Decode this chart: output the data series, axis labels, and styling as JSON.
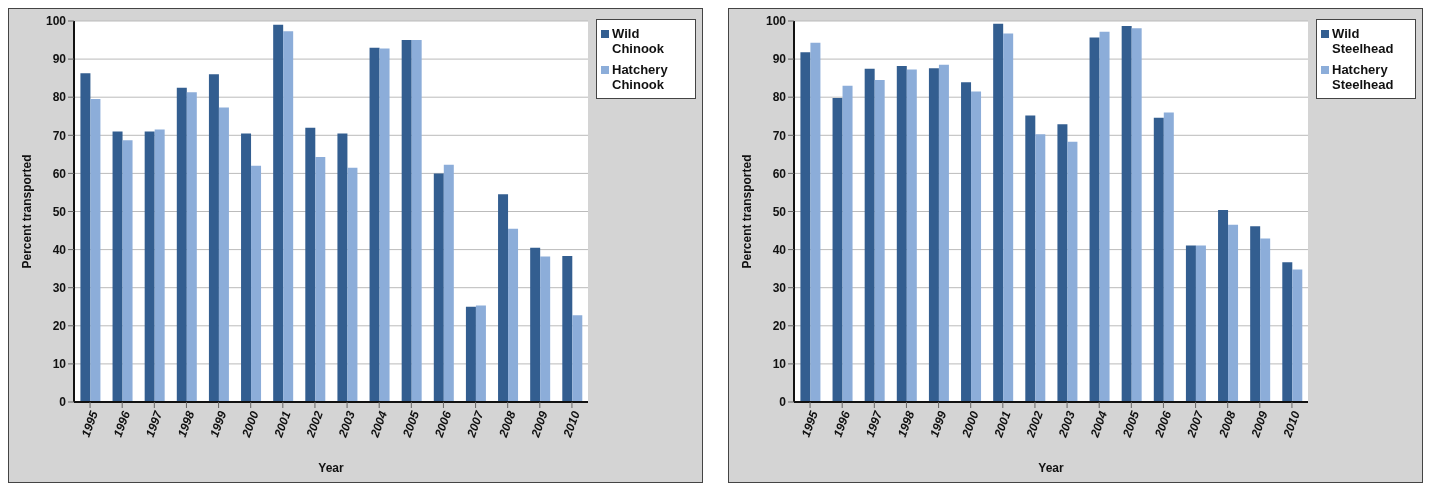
{
  "chart_data": [
    {
      "type": "bar",
      "xlabel": "Year",
      "ylabel": "Percent transported",
      "categories": [
        "1995",
        "1996",
        "1997",
        "1998",
        "1999",
        "2000",
        "2001",
        "2002",
        "2003",
        "2004",
        "2005",
        "2006",
        "2007",
        "2008",
        "2009",
        "2010"
      ],
      "ylim": [
        0,
        100
      ],
      "yticks": [
        0,
        10,
        20,
        30,
        40,
        50,
        60,
        70,
        80,
        90,
        100
      ],
      "grid": "y",
      "legend": "top right",
      "series": [
        {
          "name": "Wild Chinook",
          "color": "#335e90",
          "values": [
            86.3,
            71,
            71,
            82.5,
            86,
            70.5,
            99,
            72,
            70.5,
            93,
            95,
            60,
            25,
            54.5,
            40.5,
            38.3
          ]
        },
        {
          "name": "Hatchery Chinook",
          "color": "#8cadd9",
          "values": [
            79.5,
            68.7,
            71.5,
            81.3,
            77.3,
            62,
            97.3,
            64.3,
            61.5,
            92.8,
            95,
            62.3,
            25.3,
            45.5,
            38.2,
            22.8
          ]
        }
      ]
    },
    {
      "type": "bar",
      "xlabel": "Year",
      "ylabel": "Percent transported",
      "categories": [
        "1995",
        "1996",
        "1997",
        "1998",
        "1999",
        "2000",
        "2001",
        "2002",
        "2003",
        "2004",
        "2005",
        "2006",
        "2007",
        "2008",
        "2009",
        "2010"
      ],
      "ylim": [
        0,
        100
      ],
      "yticks": [
        0,
        10,
        20,
        30,
        40,
        50,
        60,
        70,
        80,
        90,
        100
      ],
      "grid": "y",
      "legend": "top right",
      "series": [
        {
          "name": "Wild Steelhead",
          "color": "#335e90",
          "values": [
            91.8,
            79.8,
            87.5,
            88.2,
            87.6,
            83.9,
            99.3,
            75.2,
            72.9,
            95.7,
            98.7,
            74.6,
            41.1,
            50.4,
            46.1,
            36.7
          ]
        },
        {
          "name": "Hatchery Steelhead",
          "color": "#8cadd9",
          "values": [
            94.3,
            83,
            84.5,
            87.3,
            88.5,
            81.5,
            96.7,
            70.3,
            68.3,
            97.2,
            98.1,
            76,
            41.1,
            46.5,
            42.9,
            34.8
          ]
        }
      ]
    }
  ]
}
